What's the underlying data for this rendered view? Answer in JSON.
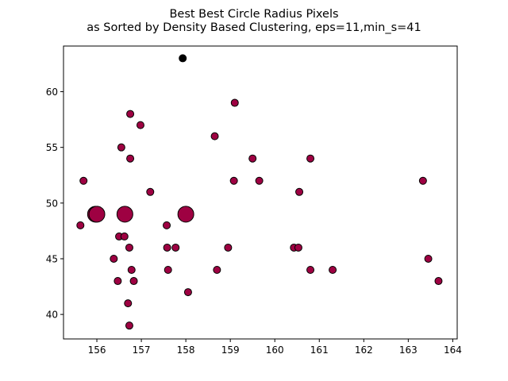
{
  "chart_data": {
    "type": "scatter",
    "title_line1": "Best Best Circle Radius Pixels",
    "title_line2": "as Sorted by Density Based Clustering, eps=11,min_s=41",
    "xlabel": "",
    "ylabel": "",
    "xlim": [
      155.25,
      164.1
    ],
    "ylim": [
      37.8,
      64.1
    ],
    "xticks": [
      156,
      157,
      158,
      159,
      160,
      161,
      162,
      163,
      164
    ],
    "yticks": [
      40,
      45,
      50,
      55,
      60
    ],
    "grid": false,
    "marker_edge_color": "#000000",
    "series": [
      {
        "color": "#9e0142",
        "points": [
          {
            "x": 155.63,
            "y": 48,
            "size": "small"
          },
          {
            "x": 155.7,
            "y": 52,
            "size": "small"
          },
          {
            "x": 155.97,
            "y": 49,
            "size": "large"
          },
          {
            "x": 156.0,
            "y": 49,
            "size": "large"
          },
          {
            "x": 156.38,
            "y": 45,
            "size": "small"
          },
          {
            "x": 156.47,
            "y": 43,
            "size": "small"
          },
          {
            "x": 156.5,
            "y": 47,
            "size": "small"
          },
          {
            "x": 156.55,
            "y": 55,
            "size": "small"
          },
          {
            "x": 156.62,
            "y": 47,
            "size": "small"
          },
          {
            "x": 156.63,
            "y": 49,
            "size": "large"
          },
          {
            "x": 156.7,
            "y": 41,
            "size": "small"
          },
          {
            "x": 156.73,
            "y": 39,
            "size": "small"
          },
          {
            "x": 156.73,
            "y": 46,
            "size": "small"
          },
          {
            "x": 156.75,
            "y": 54,
            "size": "small"
          },
          {
            "x": 156.75,
            "y": 58,
            "size": "small"
          },
          {
            "x": 156.78,
            "y": 44,
            "size": "small"
          },
          {
            "x": 156.83,
            "y": 43,
            "size": "small"
          },
          {
            "x": 156.98,
            "y": 57,
            "size": "small"
          },
          {
            "x": 157.2,
            "y": 51,
            "size": "small"
          },
          {
            "x": 157.57,
            "y": 48,
            "size": "small"
          },
          {
            "x": 157.58,
            "y": 46,
            "size": "small"
          },
          {
            "x": 157.6,
            "y": 44,
            "size": "small"
          },
          {
            "x": 157.77,
            "y": 46,
            "size": "small"
          },
          {
            "x": 158.0,
            "y": 49,
            "size": "large"
          },
          {
            "x": 158.05,
            "y": 42,
            "size": "small"
          },
          {
            "x": 158.65,
            "y": 56,
            "size": "small"
          },
          {
            "x": 158.7,
            "y": 44,
            "size": "small"
          },
          {
            "x": 158.95,
            "y": 46,
            "size": "small"
          },
          {
            "x": 159.08,
            "y": 52,
            "size": "small"
          },
          {
            "x": 159.1,
            "y": 59,
            "size": "small"
          },
          {
            "x": 159.5,
            "y": 54,
            "size": "small"
          },
          {
            "x": 159.65,
            "y": 52,
            "size": "small"
          },
          {
            "x": 160.43,
            "y": 46,
            "size": "small"
          },
          {
            "x": 160.53,
            "y": 46,
            "size": "small"
          },
          {
            "x": 160.55,
            "y": 51,
            "size": "small"
          },
          {
            "x": 160.8,
            "y": 44,
            "size": "small"
          },
          {
            "x": 160.8,
            "y": 54,
            "size": "small"
          },
          {
            "x": 161.3,
            "y": 44,
            "size": "small"
          },
          {
            "x": 163.33,
            "y": 52,
            "size": "small"
          },
          {
            "x": 163.45,
            "y": 45,
            "size": "small"
          },
          {
            "x": 163.68,
            "y": 43,
            "size": "small"
          }
        ]
      },
      {
        "color": "#000000",
        "points": [
          {
            "x": 157.93,
            "y": 63,
            "size": "small"
          }
        ]
      }
    ]
  }
}
